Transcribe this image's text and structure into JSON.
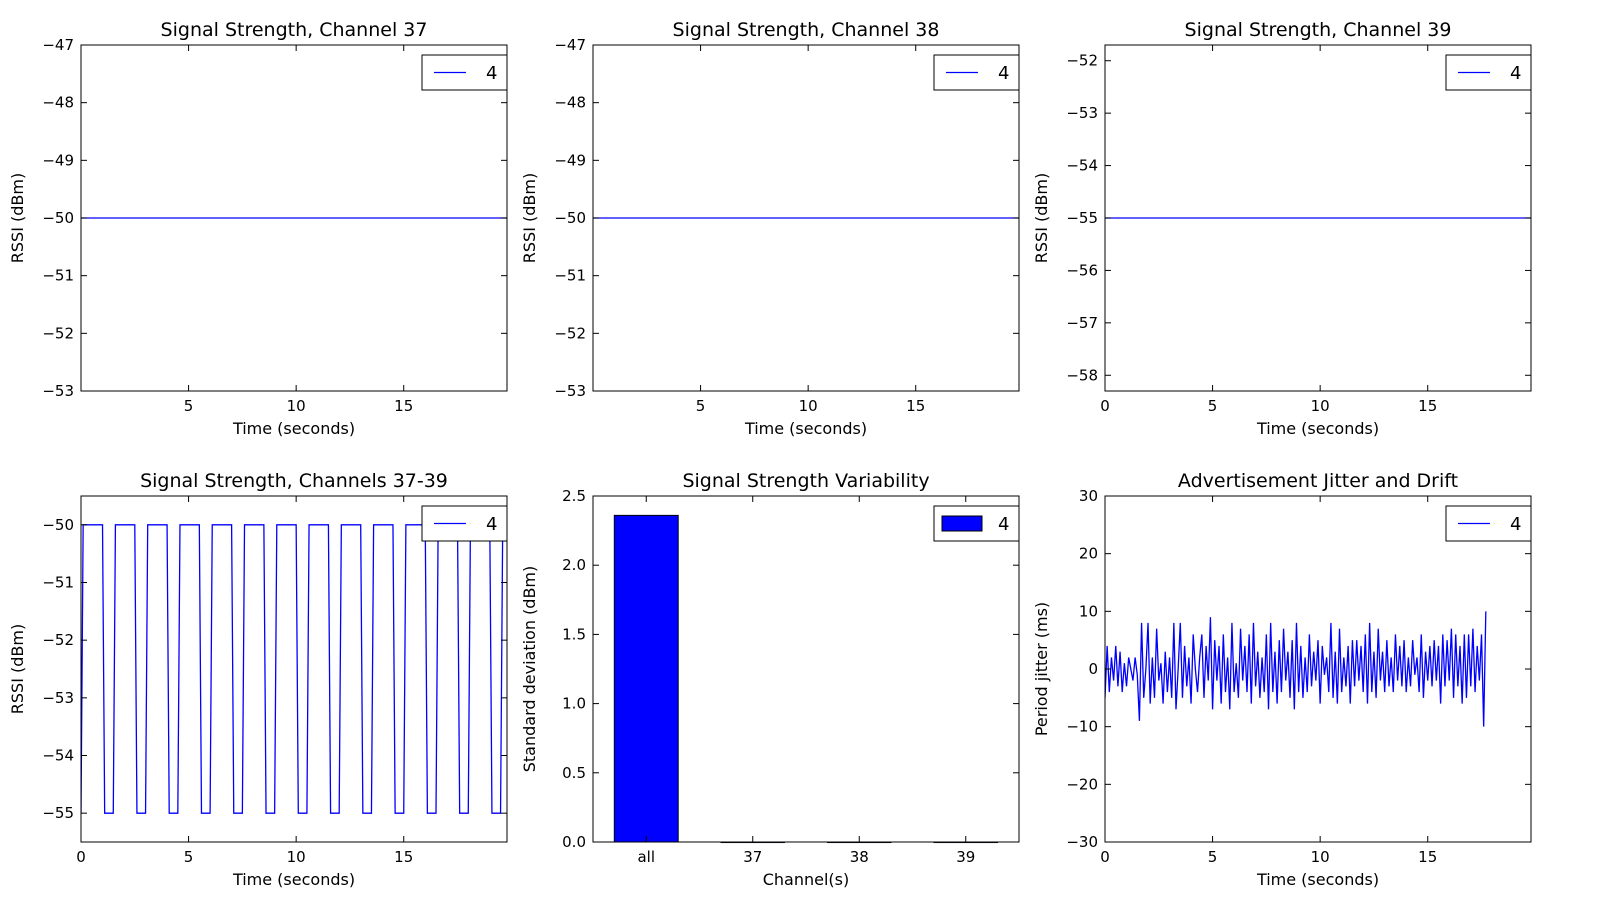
{
  "chart_data": [
    {
      "type": "line",
      "title": "Signal Strength, Channel 37",
      "xlabel": "Time (seconds)",
      "ylabel": "RSSI (dBm)",
      "xlim": [
        0,
        19.8
      ],
      "ylim": [
        -53,
        -47
      ],
      "xticks": [
        5,
        10,
        15
      ],
      "yticks": [
        -53,
        -52,
        -51,
        -50,
        -49,
        -48,
        -47
      ],
      "grid": false,
      "legend": "top-right",
      "series": [
        {
          "name": "4",
          "color": "#0000ff",
          "x": [
            0,
            19.8
          ],
          "y": [
            -50,
            -50
          ]
        }
      ]
    },
    {
      "type": "line",
      "title": "Signal Strength, Channel 38",
      "xlabel": "Time (seconds)",
      "ylabel": "RSSI (dBm)",
      "xlim": [
        0,
        19.8
      ],
      "ylim": [
        -53,
        -47
      ],
      "xticks": [
        5,
        10,
        15
      ],
      "yticks": [
        -53,
        -52,
        -51,
        -50,
        -49,
        -48,
        -47
      ],
      "grid": false,
      "legend": "top-right",
      "series": [
        {
          "name": "4",
          "color": "#0000ff",
          "x": [
            0,
            19.8
          ],
          "y": [
            -50,
            -50
          ]
        }
      ]
    },
    {
      "type": "line",
      "title": "Signal Strength, Channel 39",
      "xlabel": "Time (seconds)",
      "ylabel": "RSSI (dBm)",
      "xlim": [
        0,
        19.8
      ],
      "ylim": [
        -58.3,
        -51.7
      ],
      "xticks": [
        0,
        5,
        10,
        15
      ],
      "yticks": [
        -58,
        -57,
        -56,
        -55,
        -54,
        -53,
        -52
      ],
      "grid": false,
      "legend": "top-right",
      "series": [
        {
          "name": "4",
          "color": "#0000ff",
          "x": [
            0,
            19.8
          ],
          "y": [
            -55,
            -55
          ]
        }
      ]
    },
    {
      "type": "line",
      "title": "Signal Strength, Channels 37-39",
      "xlabel": "Time (seconds)",
      "ylabel": "RSSI (dBm)",
      "xlim": [
        0,
        19.8
      ],
      "ylim": [
        -55.5,
        -49.5
      ],
      "xticks": [
        0,
        5,
        10,
        15
      ],
      "yticks": [
        -55,
        -54,
        -53,
        -52,
        -51,
        -50
      ],
      "grid": false,
      "legend": "top-right",
      "series": [
        {
          "name": "4",
          "color": "#0000ff",
          "x": [
            0,
            0.1,
            1.0,
            1.1,
            1.5,
            1.6,
            2.5,
            2.6,
            3.0,
            3.1,
            4.0,
            4.1,
            4.5,
            4.6,
            5.5,
            5.6,
            6.0,
            6.1,
            7.0,
            7.1,
            7.5,
            7.6,
            8.5,
            8.6,
            9.0,
            9.1,
            10.0,
            10.1,
            10.5,
            10.6,
            11.5,
            11.6,
            12.0,
            12.1,
            13.0,
            13.1,
            13.5,
            13.6,
            14.5,
            14.6,
            15.0,
            15.1,
            16.0,
            16.1,
            16.5,
            16.6,
            17.5,
            17.6,
            18.0,
            18.1,
            19.0,
            19.1,
            19.5,
            19.6,
            19.8
          ],
          "y": [
            -55,
            -50,
            -50,
            -55,
            -55,
            -50,
            -50,
            -55,
            -55,
            -50,
            -50,
            -55,
            -55,
            -50,
            -50,
            -55,
            -55,
            -50,
            -50,
            -55,
            -55,
            -50,
            -50,
            -55,
            -55,
            -50,
            -50,
            -55,
            -55,
            -50,
            -50,
            -55,
            -55,
            -50,
            -50,
            -55,
            -55,
            -50,
            -50,
            -55,
            -55,
            -50,
            -50,
            -55,
            -55,
            -50,
            -50,
            -55,
            -55,
            -50,
            -50,
            -55,
            -55,
            -50,
            -50
          ]
        }
      ]
    },
    {
      "type": "bar",
      "title": "Signal Strength Variability",
      "xlabel": "Channel(s)",
      "ylabel": "Standard deviation (dBm)",
      "categories": [
        "all",
        "37",
        "38",
        "39"
      ],
      "ylim": [
        0,
        2.5
      ],
      "yticks": [
        0.0,
        0.5,
        1.0,
        1.5,
        2.0,
        2.5
      ],
      "ytick_labels": [
        "0.0",
        "0.5",
        "1.0",
        "1.5",
        "2.0",
        "2.5"
      ],
      "grid": false,
      "legend": "top-right",
      "series": [
        {
          "name": "4",
          "color": "#0000ff",
          "values": [
            2.36,
            0,
            0,
            0
          ]
        }
      ]
    },
    {
      "type": "line",
      "title": "Advertisement Jitter and Drift",
      "xlabel": "Time (seconds)",
      "ylabel": "Period jitter (ms)",
      "xlim": [
        0,
        19.8
      ],
      "ylim": [
        -30,
        30
      ],
      "xticks": [
        0,
        5,
        10,
        15
      ],
      "yticks": [
        -30,
        -20,
        -10,
        0,
        10,
        20,
        30
      ],
      "grid": false,
      "legend": "top-right",
      "series": [
        {
          "name": "4",
          "color": "#0000ff",
          "x_start": 0,
          "x_step": 0.1,
          "y": [
            -5,
            4,
            -4,
            2,
            -2,
            4,
            -3,
            3,
            -4,
            1,
            -3,
            2,
            0,
            -2,
            2,
            -1,
            -9,
            8,
            -5,
            0,
            8,
            -6,
            2,
            -5,
            7,
            -2,
            1,
            -6,
            3,
            -4,
            2,
            -5,
            8,
            -7,
            0,
            8,
            -5,
            4,
            -3,
            2,
            -6,
            6,
            0,
            -4,
            2,
            6,
            -5,
            4,
            -2,
            9,
            -7,
            5,
            -2,
            4,
            -6,
            6,
            -4,
            2,
            -7,
            8,
            -4,
            1,
            -5,
            7,
            -2,
            4,
            -4,
            6,
            -6,
            8,
            -3,
            3,
            -5,
            2,
            -4,
            6,
            -7,
            8,
            -4,
            3,
            -6,
            5,
            -4,
            7,
            -2,
            3,
            -5,
            5,
            -7,
            8,
            -4,
            4,
            -5,
            2,
            -4,
            6,
            -3,
            3,
            -2,
            5,
            -6,
            4,
            -1,
            2,
            -4,
            8,
            -5,
            3,
            -6,
            7,
            -4,
            2,
            -3,
            4,
            -6,
            5,
            -3,
            5,
            -2,
            4,
            -4,
            6,
            -6,
            8,
            -4,
            3,
            -5,
            7,
            -2,
            3,
            -4,
            5,
            -3,
            2,
            -4,
            6,
            -2,
            4,
            -3,
            5,
            -4,
            2,
            -3,
            5,
            -1,
            2,
            -4,
            6,
            -5,
            3,
            -2,
            4,
            -3,
            5,
            -2,
            4,
            -6,
            6,
            -3,
            5,
            -2,
            7,
            -5,
            6,
            -3,
            4,
            -6,
            6,
            -5,
            6,
            -3,
            7,
            -4,
            4,
            -2,
            6,
            -10,
            10
          ]
        }
      ]
    }
  ]
}
